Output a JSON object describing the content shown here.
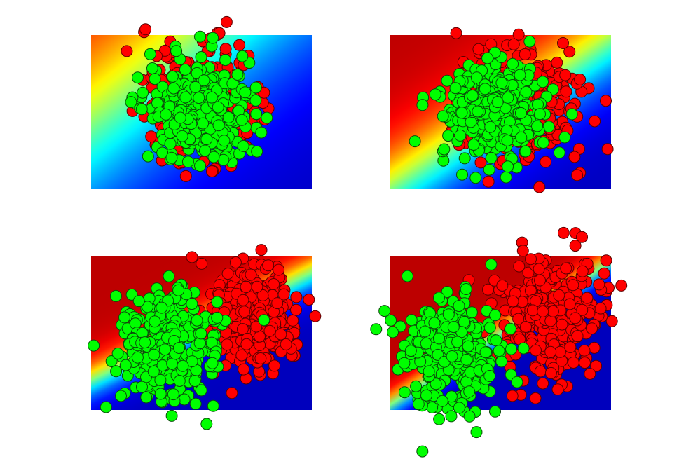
{
  "figure": {
    "background": "#ffffff"
  },
  "chart_data": [
    {
      "type": "scatter",
      "background": "decision-boundary-heatmap",
      "colormap": "jet",
      "boundary": {
        "x0": 0.08,
        "y0": 0.5,
        "angle_deg": -38,
        "sharpness": 2.2
      },
      "axes_visible": false,
      "series": [
        {
          "color": "#ff0000",
          "n": 330,
          "cx": 0.5,
          "cy": 0.45,
          "sx": 0.13,
          "sy": 0.17
        },
        {
          "color": "#00ff00",
          "n": 330,
          "cx": 0.49,
          "cy": 0.49,
          "sx": 0.12,
          "sy": 0.16
        }
      ]
    },
    {
      "type": "scatter",
      "background": "decision-boundary-heatmap",
      "colormap": "jet",
      "boundary": {
        "x0": 0.52,
        "y0": 0.5,
        "angle_deg": -34,
        "sharpness": 4.5
      },
      "axes_visible": false,
      "series": [
        {
          "color": "#ff0000",
          "n": 330,
          "cx": 0.58,
          "cy": 0.45,
          "sx": 0.13,
          "sy": 0.18
        },
        {
          "color": "#00ff00",
          "n": 330,
          "cx": 0.48,
          "cy": 0.49,
          "sx": 0.12,
          "sy": 0.17
        }
      ]
    },
    {
      "type": "scatter",
      "background": "decision-boundary-heatmap",
      "colormap": "jet",
      "boundary": {
        "x0": 0.44,
        "y0": 0.5,
        "angle_deg": -26,
        "sharpness": 10
      },
      "axes_visible": false,
      "series": [
        {
          "color": "#ff0000",
          "n": 330,
          "cx": 0.72,
          "cy": 0.4,
          "sx": 0.1,
          "sy": 0.16
        },
        {
          "color": "#00ff00",
          "n": 330,
          "cx": 0.35,
          "cy": 0.57,
          "sx": 0.11,
          "sy": 0.17
        }
      ]
    },
    {
      "type": "scatter",
      "background": "decision-boundary-heatmap",
      "colormap": "jet",
      "boundary": {
        "x0": 0.5,
        "y0": 0.5,
        "angle_deg": -33,
        "sharpness": 16
      },
      "axes_visible": false,
      "series": [
        {
          "color": "#ff0000",
          "n": 330,
          "cx": 0.73,
          "cy": 0.38,
          "sx": 0.12,
          "sy": 0.18
        },
        {
          "color": "#00ff00",
          "n": 330,
          "cx": 0.27,
          "cy": 0.62,
          "sx": 0.11,
          "sy": 0.18
        }
      ]
    }
  ]
}
